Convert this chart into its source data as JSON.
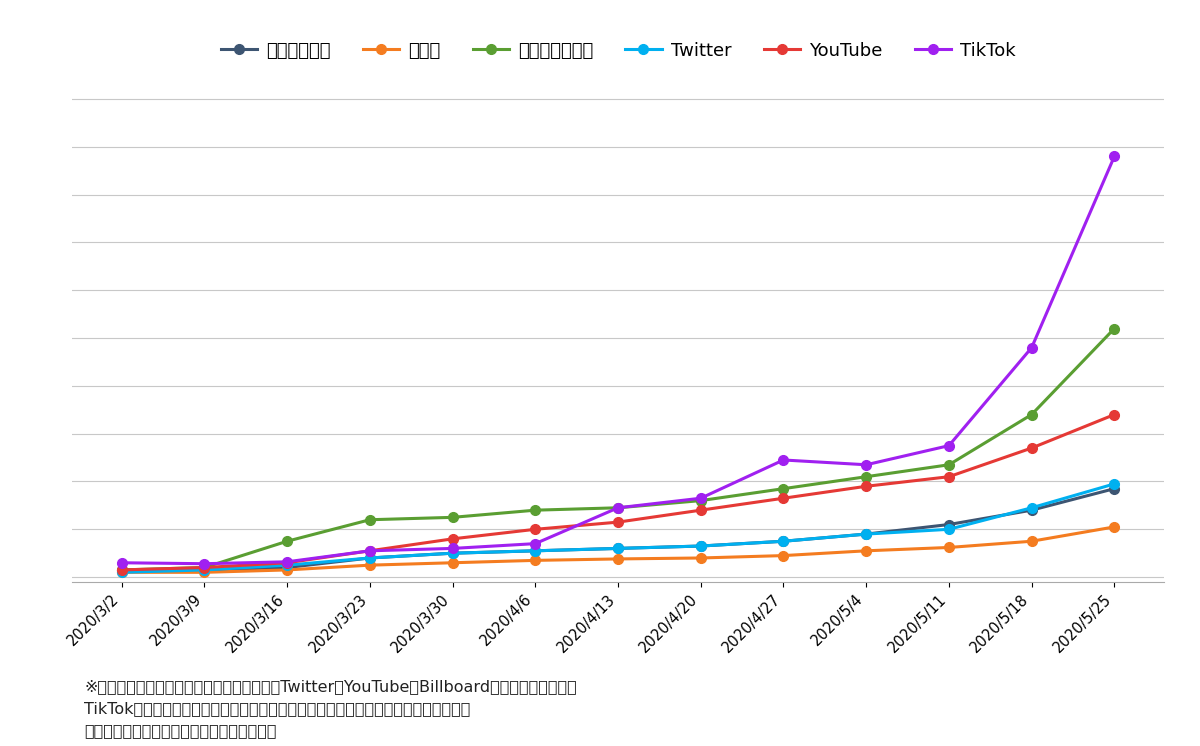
{
  "dates": [
    "2020/3/2",
    "2020/3/9",
    "2020/3/16",
    "2020/3/23",
    "2020/3/30",
    "2020/4/6",
    "2020/4/13",
    "2020/4/20",
    "2020/4/27",
    "2020/5/4",
    "2020/5/11",
    "2020/5/18",
    "2020/5/25"
  ],
  "series": {
    "ダウンロード": {
      "color": "#3d5572",
      "values": [
        0.015,
        0.015,
        0.02,
        0.04,
        0.05,
        0.055,
        0.06,
        0.065,
        0.075,
        0.09,
        0.11,
        0.14,
        0.185
      ]
    },
    "ラジオ": {
      "color": "#f47c20",
      "values": [
        0.01,
        0.01,
        0.015,
        0.025,
        0.03,
        0.035,
        0.038,
        0.04,
        0.045,
        0.055,
        0.062,
        0.075,
        0.105
      ]
    },
    "ストリーミング": {
      "color": "#5a9e32",
      "values": [
        0.015,
        0.02,
        0.075,
        0.12,
        0.125,
        0.14,
        0.145,
        0.16,
        0.185,
        0.21,
        0.235,
        0.34,
        0.52
      ]
    },
    "Twitter": {
      "color": "#00b0f0",
      "values": [
        0.01,
        0.015,
        0.025,
        0.04,
        0.05,
        0.055,
        0.06,
        0.065,
        0.075,
        0.09,
        0.1,
        0.145,
        0.195
      ]
    },
    "YouTube": {
      "color": "#e53935",
      "values": [
        0.015,
        0.02,
        0.03,
        0.055,
        0.08,
        0.1,
        0.115,
        0.14,
        0.165,
        0.19,
        0.21,
        0.27,
        0.34
      ]
    },
    "TikTok": {
      "color": "#a020f0",
      "values": [
        0.03,
        0.028,
        0.032,
        0.055,
        0.06,
        0.07,
        0.145,
        0.165,
        0.245,
        0.235,
        0.275,
        0.48,
        0.88
      ]
    }
  },
  "legend_order": [
    "ダウンロード",
    "ラジオ",
    "ストリーミング",
    "Twitter",
    "YouTube",
    "TikTok"
  ],
  "note_line1": "※ダウンロード、ラジオ、ストリーミング、Twitter、YouTubeはBillboardチャートポイント、",
  "note_line2": "TikTokは独自の再生指数によるものであるためそれぞれ別の軸にして表示している。",
  "note_line3": "数値的な大きさの比較はできないので注意。",
  "background_color": "#ffffff",
  "grid_color": "#c8c8c8"
}
